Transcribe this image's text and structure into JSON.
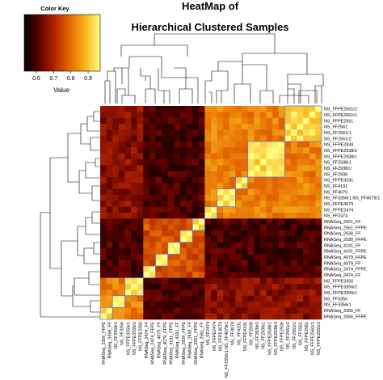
{
  "chart_data": {
    "type": "heatmap",
    "title_lines": [
      "HeatMap of",
      "Hierarchical Clustered Samples"
    ],
    "color_key": {
      "title": "Color Key",
      "xlabel": "Value",
      "ticks": [
        "0.6",
        "0.7",
        "0.8",
        "0.9"
      ],
      "tick_values": [
        0.6,
        0.7,
        0.8,
        0.9
      ],
      "range": [
        0.53,
        0.97
      ],
      "colors": [
        "#000000",
        "#5c0000",
        "#b42400",
        "#e56a00",
        "#f7b21a",
        "#ffff80"
      ]
    },
    "row_labels": [
      "NS_FFPE2561r2",
      "NS_FFPE2561r1",
      "NS_FFPE2561",
      "NS_FF2561",
      "NS_FF2561r1",
      "NS_FF2561r2",
      "NS_FFPE2938",
      "NS_FFPE2938r2",
      "NS_FFPE2938r1",
      "NS_FF2938r1",
      "NS_FF2938r2",
      "NS_FF2938",
      "NS_FFPE4191",
      "NS_FF4191",
      "NS_FF4079",
      "NS_FF3356r1.NS_FF4079r1",
      "NS_FFPE4079",
      "NS_FFPE2474",
      "NS_FF2474",
      "RNASeq_2561_FF",
      "RNASeq_2561_FFPE",
      "RNASeq_2938_FF",
      "RNASeq_2938_FFPE",
      "RNASeq_4191_FF",
      "RNASeq_4191_FFPE",
      "RNASeq_4079_FFPE",
      "RNASeq_4079_FF",
      "RNASeq_2474_FFPE",
      "RNASeq_2474_FF",
      "NS_FFPE3356",
      "NS_FFPE3356r2",
      "NS_FFPE3356r1",
      "NS_FF3356",
      "NS_FF3356r1",
      "RNASeq_3356_FF",
      "RNASeq_3356_FFPE"
    ],
    "col_labels": [
      "RNASeq_3356_FFPE",
      "RNASeq_3356_FF",
      "NS_FF3356r1",
      "NS_FF3356",
      "NS_FFPE3356r1",
      "NS_FFPE3356r2",
      "NS_FFPE3356",
      "RNASeq_2474_FF",
      "RNASeq_2474_FFPE",
      "RNASeq_4079_FF",
      "RNASeq_4079_FFPE",
      "RNASeq_4191_FFPE",
      "RNASeq_4191_FF",
      "RNASeq_2938_FFPE",
      "RNASeq_2938_FF",
      "RNASeq_2561_FFPE",
      "RNASeq_2561_FF",
      "NS_FF2474",
      "NS_FFPE2474",
      "NS_FFPE4079",
      "NS_FF3356r1.NS_FF4079r1",
      "NS_FF4079",
      "NS_FF4191",
      "NS_FFPE4191",
      "NS_FF2938",
      "NS_FF2938r2",
      "NS_FF2938r1",
      "NS_FFPE2938r1",
      "NS_FFPE2938r2",
      "NS_FFPE2938",
      "NS_FF2561r2",
      "NS_FF2561r1",
      "NS_FF2561",
      "NS_FFPE2561",
      "NS_FFPE2561r1",
      "NS_FFPE2561r2"
    ],
    "row_groups": [
      [
        0,
        5
      ],
      [
        6,
        11
      ],
      [
        12,
        13
      ],
      [
        14,
        16
      ],
      [
        17,
        18
      ],
      [
        19,
        20
      ],
      [
        21,
        22
      ],
      [
        23,
        24
      ],
      [
        25,
        26
      ],
      [
        27,
        28
      ],
      [
        29,
        31
      ],
      [
        32,
        33
      ],
      [
        34,
        35
      ]
    ]
  }
}
